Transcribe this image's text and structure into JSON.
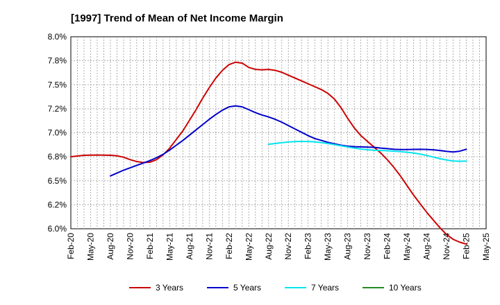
{
  "chart_data": {
    "type": "line",
    "title": "[1997]  Trend of Mean of Net Income Margin",
    "xlabel": "",
    "ylabel": "",
    "x_ticks": [
      "Feb-20",
      "May-20",
      "Aug-20",
      "Nov-20",
      "Feb-21",
      "May-21",
      "Aug-21",
      "Nov-21",
      "Feb-22",
      "May-22",
      "Aug-22",
      "Nov-22",
      "Feb-23",
      "May-23",
      "Aug-23",
      "Nov-23",
      "Feb-24",
      "May-24",
      "Aug-24",
      "Nov-24",
      "Feb-25",
      "May-25"
    ],
    "y_ticks": [
      "6.0%",
      "6.2%",
      "6.5%",
      "6.8%",
      "7.0%",
      "7.2%",
      "7.5%",
      "7.8%",
      "8.0%"
    ],
    "ylim": [
      6.0,
      8.0
    ],
    "grid": true,
    "legend_position": "bottom",
    "series": [
      {
        "name": "3 Years",
        "color": "#cc0000",
        "points": [
          [
            "2020-02",
            6.75
          ],
          [
            "2020-04",
            6.765
          ],
          [
            "2020-06",
            6.768
          ],
          [
            "2020-08",
            6.765
          ],
          [
            "2020-09",
            6.76
          ],
          [
            "2020-10",
            6.745
          ],
          [
            "2020-11",
            6.72
          ],
          [
            "2020-12",
            6.7
          ],
          [
            "2021-01",
            6.69
          ],
          [
            "2021-02",
            6.693
          ],
          [
            "2021-03",
            6.72
          ],
          [
            "2021-04",
            6.77
          ],
          [
            "2021-05",
            6.84
          ],
          [
            "2021-06",
            6.93
          ],
          [
            "2021-07",
            7.02
          ],
          [
            "2021-08",
            7.13
          ],
          [
            "2021-09",
            7.24
          ],
          [
            "2021-10",
            7.36
          ],
          [
            "2021-11",
            7.47
          ],
          [
            "2021-12",
            7.57
          ],
          [
            "2022-01",
            7.65
          ],
          [
            "2022-02",
            7.71
          ],
          [
            "2022-03",
            7.735
          ],
          [
            "2022-04",
            7.725
          ],
          [
            "2022-05",
            7.68
          ],
          [
            "2022-06",
            7.66
          ],
          [
            "2022-07",
            7.655
          ],
          [
            "2022-08",
            7.66
          ],
          [
            "2022-09",
            7.65
          ],
          [
            "2022-10",
            7.63
          ],
          [
            "2022-11",
            7.6
          ],
          [
            "2022-12",
            7.57
          ],
          [
            "2023-01",
            7.54
          ],
          [
            "2023-02",
            7.51
          ],
          [
            "2023-03",
            7.48
          ],
          [
            "2023-04",
            7.45
          ],
          [
            "2023-05",
            7.41
          ],
          [
            "2023-06",
            7.35
          ],
          [
            "2023-07",
            7.26
          ],
          [
            "2023-08",
            7.15
          ],
          [
            "2023-09",
            7.05
          ],
          [
            "2023-10",
            6.97
          ],
          [
            "2023-11",
            6.91
          ],
          [
            "2023-12",
            6.85
          ],
          [
            "2024-01",
            6.79
          ],
          [
            "2024-02",
            6.72
          ],
          [
            "2024-03",
            6.64
          ],
          [
            "2024-04",
            6.55
          ],
          [
            "2024-05",
            6.45
          ],
          [
            "2024-06",
            6.35
          ],
          [
            "2024-07",
            6.26
          ],
          [
            "2024-08",
            6.17
          ],
          [
            "2024-09",
            6.09
          ],
          [
            "2024-10",
            6.01
          ],
          [
            "2024-11",
            5.94
          ],
          [
            "2024-12",
            5.89
          ],
          [
            "2025-01",
            5.86
          ],
          [
            "2025-02",
            5.84
          ]
        ]
      },
      {
        "name": "5 Years",
        "color": "#0000cc",
        "points": [
          [
            "2020-08",
            6.55
          ],
          [
            "2020-09",
            6.58
          ],
          [
            "2020-10",
            6.61
          ],
          [
            "2020-11",
            6.635
          ],
          [
            "2020-12",
            6.66
          ],
          [
            "2021-01",
            6.685
          ],
          [
            "2021-02",
            6.71
          ],
          [
            "2021-03",
            6.74
          ],
          [
            "2021-04",
            6.775
          ],
          [
            "2021-05",
            6.82
          ],
          [
            "2021-06",
            6.87
          ],
          [
            "2021-07",
            6.92
          ],
          [
            "2021-08",
            6.975
          ],
          [
            "2021-09",
            7.03
          ],
          [
            "2021-10",
            7.085
          ],
          [
            "2021-11",
            7.14
          ],
          [
            "2021-12",
            7.19
          ],
          [
            "2022-01",
            7.235
          ],
          [
            "2022-02",
            7.27
          ],
          [
            "2022-03",
            7.28
          ],
          [
            "2022-04",
            7.27
          ],
          [
            "2022-05",
            7.24
          ],
          [
            "2022-06",
            7.21
          ],
          [
            "2022-07",
            7.185
          ],
          [
            "2022-08",
            7.165
          ],
          [
            "2022-09",
            7.14
          ],
          [
            "2022-10",
            7.11
          ],
          [
            "2022-11",
            7.075
          ],
          [
            "2022-12",
            7.04
          ],
          [
            "2023-01",
            7.005
          ],
          [
            "2023-02",
            6.97
          ],
          [
            "2023-03",
            6.94
          ],
          [
            "2023-04",
            6.92
          ],
          [
            "2023-05",
            6.9
          ],
          [
            "2023-06",
            6.885
          ],
          [
            "2023-07",
            6.87
          ],
          [
            "2023-08",
            6.86
          ],
          [
            "2023-09",
            6.855
          ],
          [
            "2023-10",
            6.853
          ],
          [
            "2023-11",
            6.85
          ],
          [
            "2023-12",
            6.848
          ],
          [
            "2024-01",
            6.84
          ],
          [
            "2024-02",
            6.835
          ],
          [
            "2024-03",
            6.828
          ],
          [
            "2024-04",
            6.825
          ],
          [
            "2024-05",
            6.825
          ],
          [
            "2024-06",
            6.827
          ],
          [
            "2024-07",
            6.828
          ],
          [
            "2024-08",
            6.826
          ],
          [
            "2024-09",
            6.822
          ],
          [
            "2024-10",
            6.815
          ],
          [
            "2024-11",
            6.806
          ],
          [
            "2024-12",
            6.8
          ],
          [
            "2025-01",
            6.808
          ],
          [
            "2025-02",
            6.828
          ]
        ]
      },
      {
        "name": "7 Years",
        "color": "#00e5ee",
        "points": [
          [
            "2022-08",
            6.88
          ],
          [
            "2022-09",
            6.888
          ],
          [
            "2022-10",
            6.896
          ],
          [
            "2022-11",
            6.903
          ],
          [
            "2022-12",
            6.908
          ],
          [
            "2023-01",
            6.91
          ],
          [
            "2023-02",
            6.909
          ],
          [
            "2023-03",
            6.905
          ],
          [
            "2023-04",
            6.897
          ],
          [
            "2023-05",
            6.888
          ],
          [
            "2023-06",
            6.876
          ],
          [
            "2023-07",
            6.864
          ],
          [
            "2023-08",
            6.852
          ],
          [
            "2023-09",
            6.84
          ],
          [
            "2023-10",
            6.83
          ],
          [
            "2023-11",
            6.823
          ],
          [
            "2023-12",
            6.818
          ],
          [
            "2024-01",
            6.815
          ],
          [
            "2024-02",
            6.813
          ],
          [
            "2024-03",
            6.808
          ],
          [
            "2024-04",
            6.803
          ],
          [
            "2024-05",
            6.797
          ],
          [
            "2024-06",
            6.789
          ],
          [
            "2024-07",
            6.778
          ],
          [
            "2024-08",
            6.763
          ],
          [
            "2024-09",
            6.746
          ],
          [
            "2024-10",
            6.73
          ],
          [
            "2024-11",
            6.716
          ],
          [
            "2024-12",
            6.706
          ],
          [
            "2025-01",
            6.703
          ],
          [
            "2025-02",
            6.705
          ]
        ]
      },
      {
        "name": "10 Years",
        "color": "#228b22",
        "points": []
      }
    ]
  }
}
